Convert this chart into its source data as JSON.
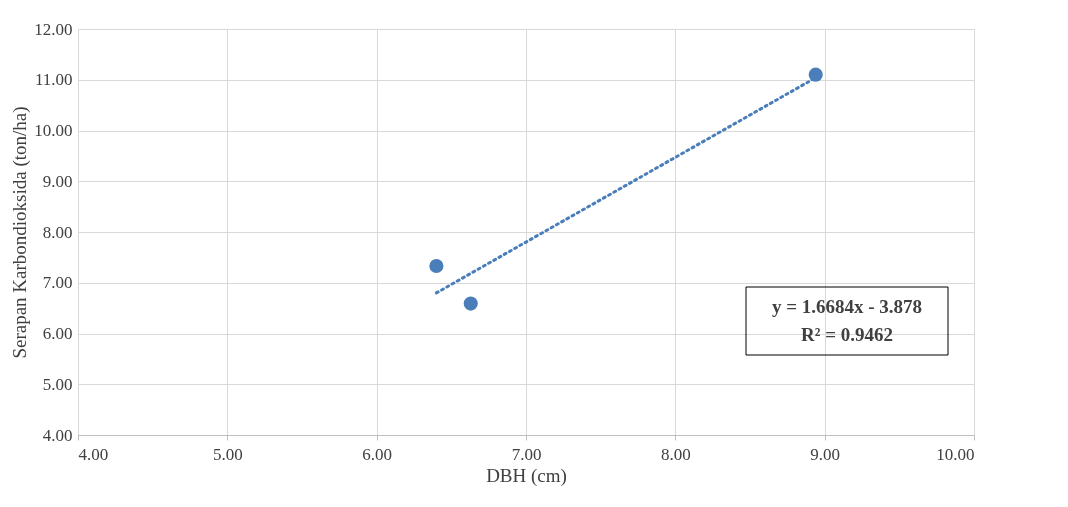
{
  "chart_data": {
    "type": "scatter",
    "xlabel": "DBH (cm)",
    "ylabel": "Serapan Karbondioksida (ton/ha)",
    "xlim": [
      4,
      10
    ],
    "xticks": [
      {
        "value": 4,
        "label": "4.00"
      },
      {
        "value": 5,
        "label": "5.00"
      },
      {
        "value": 6,
        "label": "6.00"
      },
      {
        "value": 7,
        "label": "7.00"
      },
      {
        "value": 8,
        "label": "8.00"
      },
      {
        "value": 9,
        "label": "9.00"
      },
      {
        "value": 10,
        "label": "10.00"
      }
    ],
    "ylim": [
      4,
      12
    ],
    "yticks": [
      {
        "value": 4,
        "label": "4.00"
      },
      {
        "value": 5,
        "label": "5.00"
      },
      {
        "value": 6,
        "label": "6.00"
      },
      {
        "value": 7,
        "label": "7.00"
      },
      {
        "value": 8,
        "label": "8.00"
      },
      {
        "value": 9,
        "label": "9.00"
      },
      {
        "value": 10,
        "label": "10.00"
      },
      {
        "value": 11,
        "label": "11.00"
      },
      {
        "value": 12,
        "label": "12.00"
      }
    ],
    "grid": true,
    "marker": "circle",
    "series": [
      {
        "color": "#4a7ebb",
        "x": [
          6.4,
          6.63,
          8.94
        ],
        "values": [
          7.33,
          6.59,
          11.1
        ]
      },
      {
        "type": "line",
        "color": "#4a7ebb",
        "line_style": "dotted",
        "marker": "none",
        "x": [
          6.4,
          8.94
        ],
        "values": [
          6.8,
          11.04
        ]
      }
    ],
    "annotations": [
      "y = 1.6684x - 3.878",
      "R² = 0.9462"
    ]
  }
}
